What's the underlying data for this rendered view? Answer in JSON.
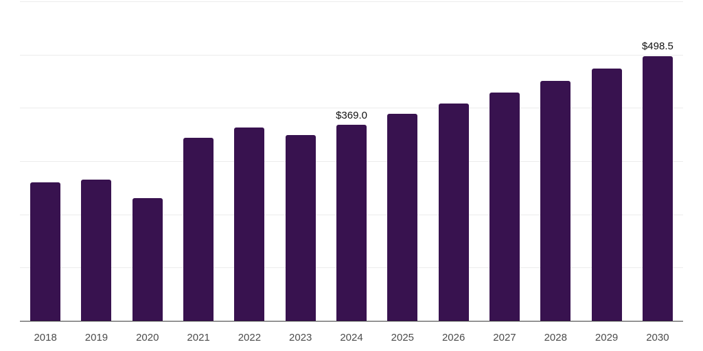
{
  "chart_data": {
    "type": "bar",
    "title": "",
    "xlabel": "",
    "ylabel": "",
    "categories": [
      "2018",
      "2019",
      "2020",
      "2021",
      "2022",
      "2023",
      "2024",
      "2025",
      "2026",
      "2027",
      "2028",
      "2029",
      "2030"
    ],
    "values": [
      261,
      266,
      232,
      345,
      364,
      350,
      369.0,
      390,
      410,
      430,
      452,
      475,
      498.5
    ],
    "data_labels": [
      "",
      "",
      "",
      "",
      "",
      "",
      "$369.0",
      "",
      "",
      "",
      "",
      "",
      "$498.5"
    ],
    "ylim": [
      0,
      600
    ],
    "grid_step": 100,
    "grid": true,
    "y_tick_labels_visible": false,
    "legend": null
  },
  "colors": {
    "background": "#ffffff",
    "bar": "#38124f",
    "grid": "#ececec",
    "axis": "#3c3c3c",
    "value_label": "#111111",
    "tick_label": "#4b4b4b"
  }
}
